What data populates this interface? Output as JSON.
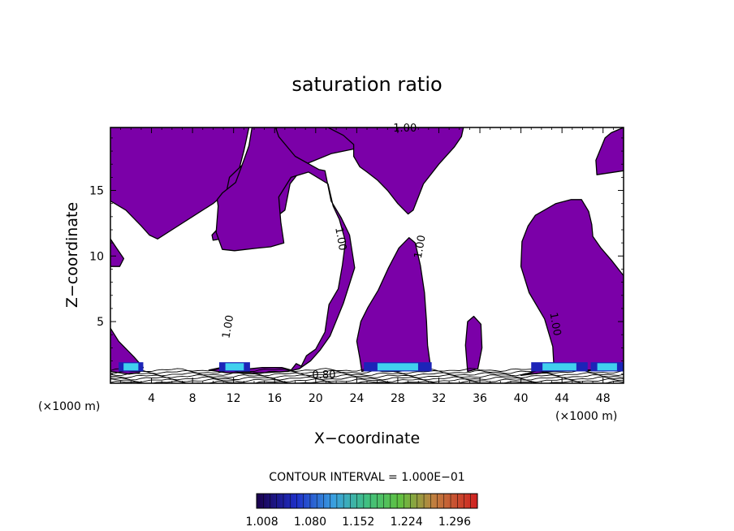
{
  "chart_data": {
    "type": "contour",
    "title": "saturation ratio",
    "xlabel": "X−coordinate",
    "ylabel": "Z−coordinate",
    "x_unit_left": "(×1000 m)",
    "x_unit_right": "(×1000 m)",
    "xlim": [
      0,
      50
    ],
    "ylim": [
      0.3,
      19.8
    ],
    "x_ticks": [
      4,
      8,
      12,
      16,
      20,
      24,
      28,
      32,
      36,
      40,
      44,
      48
    ],
    "y_ticks": [
      5,
      10,
      15
    ],
    "contour_interval_text": "CONTOUR INTERVAL = 1.000E−01",
    "contour_labels": [
      {
        "text": "1.00",
        "x": 28.7,
        "y": 19.7,
        "angle": 0
      },
      {
        "text": "1.00",
        "x": 22.4,
        "y": 11.3,
        "angle": 80
      },
      {
        "text": "1.00",
        "x": 30.2,
        "y": 10.7,
        "angle": -80
      },
      {
        "text": "1.00",
        "x": 11.5,
        "y": 4.6,
        "angle": -80
      },
      {
        "text": "1.00",
        "x": 43.3,
        "y": 4.8,
        "angle": 80
      },
      {
        "text": "0.80",
        "x": 20.8,
        "y": 0.9,
        "angle": 0
      }
    ],
    "colorbar": {
      "min": 1.0,
      "max": 1.33,
      "labels": [
        "1.008",
        "1.080",
        "1.152",
        "1.224",
        "1.296"
      ]
    },
    "fill_color": "#7b00a8",
    "regions_above_1": [
      [
        [
          0,
          19.8
        ],
        [
          13.5,
          19.8
        ],
        [
          13.0,
          18.0
        ],
        [
          12.4,
          16.2
        ],
        [
          11.5,
          15.0
        ],
        [
          10.0,
          14.0
        ],
        [
          8.0,
          13.0
        ],
        [
          6.0,
          12.0
        ],
        [
          4.6,
          11.3
        ],
        [
          3.8,
          11.6
        ],
        [
          3.0,
          12.3
        ],
        [
          1.5,
          13.5
        ],
        [
          0,
          14.2
        ]
      ],
      [
        [
          16.2,
          19.8
        ],
        [
          30.0,
          19.8
        ],
        [
          27.5,
          19.0
        ],
        [
          24.0,
          18.2
        ],
        [
          21.5,
          17.8
        ],
        [
          19.0,
          17.0
        ],
        [
          17.5,
          15.5
        ],
        [
          17.0,
          13.5
        ],
        [
          15.5,
          12.6
        ],
        [
          13.4,
          12.1
        ],
        [
          11.6,
          11.4
        ],
        [
          10.0,
          11.2
        ],
        [
          9.9,
          11.6
        ],
        [
          10.6,
          12.2
        ],
        [
          11.0,
          13.0
        ],
        [
          11.2,
          14.5
        ],
        [
          11.6,
          16.0
        ],
        [
          13.2,
          17.2
        ],
        [
          15.0,
          18.0
        ],
        [
          16.0,
          19.0
        ]
      ],
      [
        [
          21.2,
          19.8
        ],
        [
          34.4,
          19.8
        ],
        [
          34.2,
          19.1
        ],
        [
          33.5,
          18.3
        ],
        [
          32.0,
          17.0
        ],
        [
          30.5,
          15.5
        ],
        [
          29.5,
          13.5
        ],
        [
          29.0,
          13.2
        ],
        [
          28.0,
          14.0
        ],
        [
          27.0,
          15.0
        ],
        [
          26.0,
          15.8
        ],
        [
          25.0,
          16.4
        ],
        [
          24.3,
          16.8
        ],
        [
          23.7,
          17.6
        ],
        [
          23.7,
          18.5
        ],
        [
          22.7,
          19.2
        ]
      ],
      [
        [
          9.6,
          1.3
        ],
        [
          10.8,
          1.5
        ],
        [
          12.6,
          1.6
        ],
        [
          13.6,
          1.4
        ],
        [
          14.8,
          1.5
        ],
        [
          16.7,
          1.5
        ],
        [
          17.6,
          1.3
        ],
        [
          18.1,
          1.8
        ],
        [
          18.6,
          1.6
        ],
        [
          19.1,
          2.4
        ],
        [
          20.0,
          2.9
        ],
        [
          20.9,
          4.2
        ],
        [
          21.3,
          6.3
        ],
        [
          22.2,
          7.5
        ],
        [
          22.6,
          9.3
        ],
        [
          22.9,
          11.1
        ],
        [
          22.3,
          12.8
        ],
        [
          21.7,
          13.8
        ],
        [
          21.2,
          15.5
        ],
        [
          19.3,
          16.4
        ],
        [
          17.6,
          16.0
        ],
        [
          16.4,
          14.5
        ],
        [
          16.6,
          12.6
        ],
        [
          16.9,
          11.0
        ],
        [
          15.6,
          10.7
        ],
        [
          14.3,
          10.6
        ],
        [
          13.2,
          10.5
        ],
        [
          12.1,
          10.4
        ],
        [
          10.9,
          10.5
        ],
        [
          10.3,
          11.8
        ],
        [
          10.5,
          13.8
        ],
        [
          10.4,
          14.3
        ],
        [
          10.9,
          14.8
        ],
        [
          12.2,
          15.6
        ],
        [
          13.0,
          17.3
        ],
        [
          13.5,
          18.4
        ],
        [
          13.8,
          19.8
        ],
        [
          16.1,
          19.8
        ],
        [
          16.4,
          19.1
        ],
        [
          18.0,
          17.6
        ],
        [
          20.3,
          16.6
        ],
        [
          20.9,
          16.5
        ],
        [
          21.5,
          14.2
        ],
        [
          22.5,
          12.9
        ],
        [
          23.3,
          11.6
        ],
        [
          23.8,
          9.1
        ],
        [
          22.7,
          6.4
        ],
        [
          21.4,
          3.9
        ],
        [
          20.4,
          2.8
        ],
        [
          19.5,
          2.0
        ],
        [
          18.4,
          1.4
        ],
        [
          17.3,
          1.2
        ],
        [
          14.9,
          1.1
        ],
        [
          13.5,
          1.1
        ],
        [
          11.3,
          1.1
        ]
      ],
      [
        [
          24.5,
          1.2
        ],
        [
          25.8,
          1.5
        ],
        [
          28.0,
          1.5
        ],
        [
          30.5,
          1.5
        ],
        [
          31.2,
          1.5
        ],
        [
          30.9,
          3.2
        ],
        [
          30.8,
          5.0
        ],
        [
          30.6,
          7.2
        ],
        [
          30.2,
          9.3
        ],
        [
          29.7,
          11.0
        ],
        [
          29.1,
          11.4
        ],
        [
          28.1,
          10.6
        ],
        [
          27.1,
          9.1
        ],
        [
          26.1,
          7.4
        ],
        [
          25.1,
          6.1
        ],
        [
          24.4,
          5.0
        ],
        [
          24.0,
          3.5
        ],
        [
          24.3,
          2.2
        ]
      ],
      [
        [
          34.8,
          1.2
        ],
        [
          35.8,
          1.4
        ],
        [
          36.2,
          3.0
        ],
        [
          36.1,
          4.8
        ],
        [
          35.4,
          5.4
        ],
        [
          34.8,
          5.0
        ],
        [
          34.6,
          3.2
        ]
      ],
      [
        [
          40.0,
          0.9
        ],
        [
          43.2,
          1.2
        ],
        [
          46.7,
          1.3
        ],
        [
          50.0,
          1.4
        ],
        [
          50.0,
          8.5
        ],
        [
          48.8,
          9.7
        ],
        [
          47.8,
          10.6
        ],
        [
          47.0,
          11.5
        ],
        [
          46.9,
          12.4
        ],
        [
          46.6,
          13.4
        ],
        [
          45.9,
          14.3
        ],
        [
          44.9,
          14.3
        ],
        [
          43.4,
          14.0
        ],
        [
          41.4,
          13.1
        ],
        [
          40.7,
          12.3
        ],
        [
          40.1,
          11.1
        ],
        [
          40.0,
          9.2
        ],
        [
          40.8,
          7.2
        ],
        [
          42.3,
          5.2
        ],
        [
          43.1,
          3.1
        ],
        [
          43.2,
          1.8
        ],
        [
          41.8,
          1.3
        ]
      ],
      [
        [
          0,
          4.5
        ],
        [
          0.8,
          3.5
        ],
        [
          2.3,
          2.3
        ],
        [
          3.2,
          1.5
        ],
        [
          2.8,
          1.1
        ],
        [
          1.8,
          1.0
        ],
        [
          0,
          1.2
        ]
      ],
      [
        [
          0,
          11.3
        ],
        [
          0.6,
          10.6
        ],
        [
          1.3,
          9.8
        ],
        [
          0.9,
          9.2
        ],
        [
          0,
          9.2
        ]
      ],
      [
        [
          47.4,
          16.2
        ],
        [
          50.0,
          16.5
        ],
        [
          50.0,
          19.8
        ],
        [
          48.8,
          19.4
        ],
        [
          48.2,
          19.0
        ],
        [
          47.3,
          17.3
        ]
      ]
    ]
  }
}
